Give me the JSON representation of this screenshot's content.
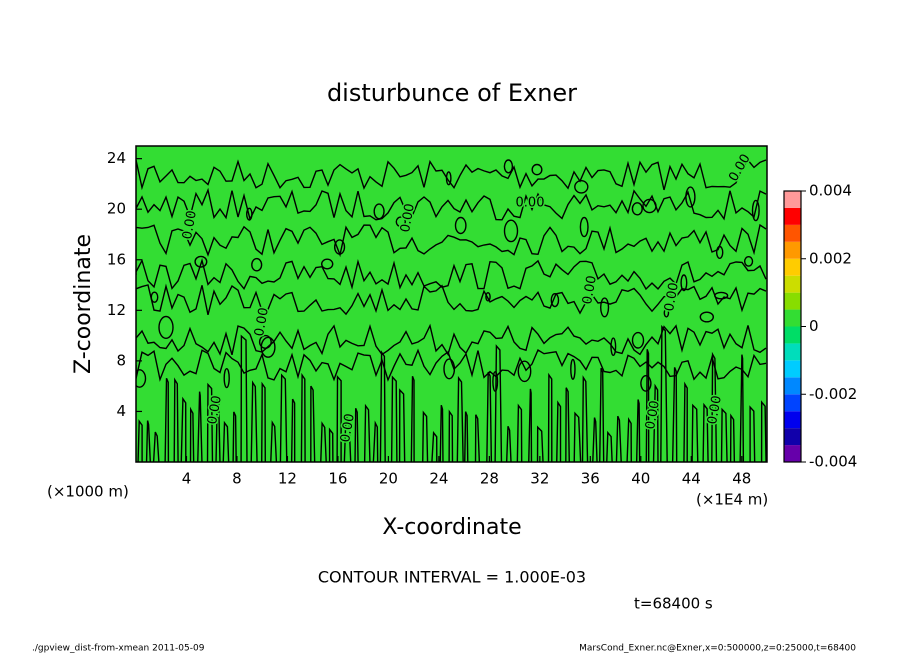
{
  "chart_data": {
    "type": "contour",
    "title": "disturbunce of Exner",
    "x_label": "X-coordinate",
    "y_label": "Z-coordinate",
    "x_unit": "(×1E4 m)",
    "y_unit": "(×1000 m)",
    "xlim": [
      0,
      50
    ],
    "xticks": [
      4,
      8,
      12,
      16,
      20,
      24,
      28,
      32,
      36,
      40,
      44,
      48
    ],
    "ylim": [
      0,
      25
    ],
    "yticks": [
      4,
      8,
      12,
      16,
      20,
      24
    ],
    "contour_label": "0.00",
    "colorbar": {
      "levels": [
        -0.004,
        -0.0035,
        -0.003,
        -0.0025,
        -0.002,
        -0.0015,
        -0.001,
        -0.0005,
        0,
        0.0005,
        0.001,
        0.0015,
        0.002,
        0.0025,
        0.003,
        0.0035,
        0.004
      ],
      "colors": [
        "#6600aa",
        "#1100aa",
        "#0000ee",
        "#0044ff",
        "#0088ff",
        "#00ccff",
        "#00ddbb",
        "#00dd66",
        "#33dd33",
        "#88dd00",
        "#ccdd00",
        "#ffcc00",
        "#ff9900",
        "#ff5500",
        "#ff0000",
        "#ff9999"
      ],
      "ticks": [
        -0.004,
        -0.002,
        0,
        0.002,
        0.004
      ]
    },
    "contour_interval": "CONTOUR INTERVAL = 1.000E-03",
    "time": "t=68400 s",
    "footer_left": "./gpview_dist-from-xmean  2011-05-09",
    "footer_right": "MarsCond_Exner.nc@Exner,x=0:500000,z=0:25000,t=68400"
  }
}
